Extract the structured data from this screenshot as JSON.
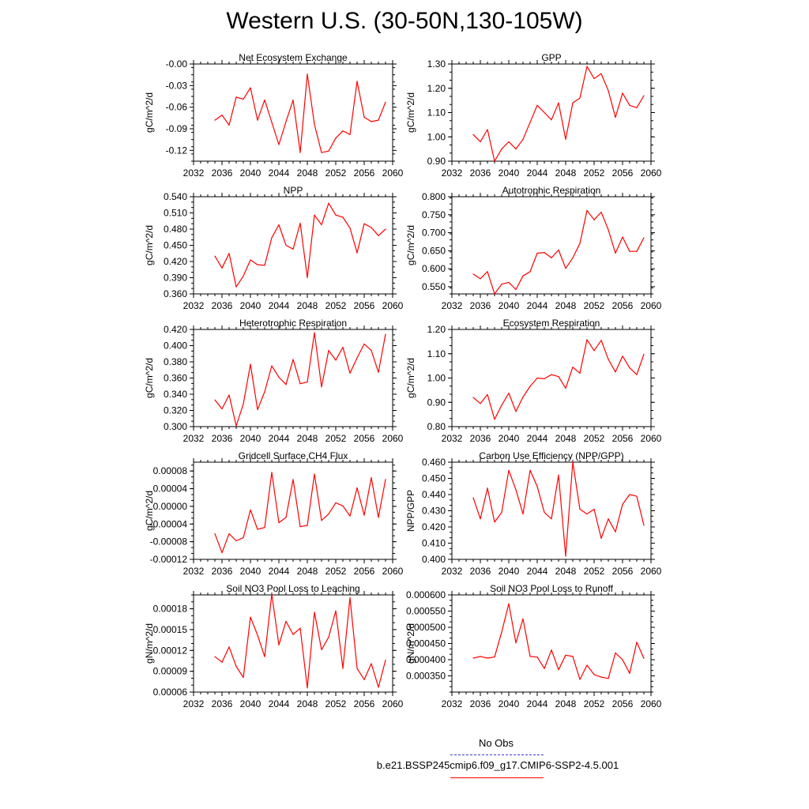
{
  "title": "Western U.S. (30-50N,130-105W)",
  "x_ticks": [
    "2032",
    "2036",
    "2040",
    "2044",
    "2048",
    "2052",
    "2056",
    "2060"
  ],
  "legend": {
    "obs_label": "No Obs",
    "obs_color": "#3b3bd6",
    "model_label": "b.e21.BSSP245cmip6.f09_g17.CMIP6-SSP2-4.5.001",
    "model_color": "#ff0000"
  },
  "chart_data": [
    {
      "type": "line",
      "title": "Net Ecosystem Exchange",
      "ylabel": "gC/m^2/d",
      "xlim": [
        2032,
        2060
      ],
      "ylim": [
        -0.135,
        0.0
      ],
      "yticks": [
        "-0.00",
        "-0.03",
        "-0.06",
        "-0.09",
        "-0.12"
      ],
      "ytick_values": [
        0.0,
        -0.03,
        -0.06,
        -0.09,
        -0.12
      ],
      "series": [
        {
          "x": [
            2035,
            2036,
            2037,
            2038,
            2039,
            2040,
            2041,
            2042,
            2043,
            2044,
            2045,
            2046,
            2047,
            2048,
            2049,
            2050,
            2051,
            2052,
            2053,
            2054,
            2055,
            2056,
            2057,
            2058,
            2059
          ],
          "values": [
            -0.078,
            -0.071,
            -0.085,
            -0.046,
            -0.049,
            -0.033,
            -0.078,
            -0.05,
            -0.081,
            -0.112,
            -0.08,
            -0.05,
            -0.123,
            -0.014,
            -0.084,
            -0.123,
            -0.121,
            -0.103,
            -0.093,
            -0.098,
            -0.024,
            -0.074,
            -0.08,
            -0.078,
            -0.053
          ]
        }
      ]
    },
    {
      "type": "line",
      "title": "GPP",
      "ylabel": "gC/m^2/d",
      "xlim": [
        2032,
        2060
      ],
      "ylim": [
        0.9,
        1.3
      ],
      "yticks": [
        "1.30",
        "1.20",
        "1.10",
        "1.00",
        "0.90"
      ],
      "ytick_values": [
        1.3,
        1.2,
        1.1,
        1.0,
        0.9
      ],
      "series": [
        {
          "x": [
            2035,
            2036,
            2037,
            2038,
            2039,
            2040,
            2041,
            2042,
            2043,
            2044,
            2045,
            2046,
            2047,
            2048,
            2049,
            2050,
            2051,
            2052,
            2053,
            2054,
            2055,
            2056,
            2057,
            2058,
            2059
          ],
          "values": [
            1.01,
            0.98,
            1.03,
            0.9,
            0.95,
            0.98,
            0.95,
            0.99,
            1.06,
            1.13,
            1.1,
            1.07,
            1.14,
            0.99,
            1.14,
            1.16,
            1.29,
            1.24,
            1.26,
            1.19,
            1.08,
            1.18,
            1.13,
            1.12,
            1.17
          ]
        }
      ]
    },
    {
      "type": "line",
      "title": "NPP",
      "ylabel": "gC/m^2/d",
      "xlim": [
        2032,
        2060
      ],
      "ylim": [
        0.36,
        0.54
      ],
      "yticks": [
        "0.540",
        "0.510",
        "0.480",
        "0.450",
        "0.420",
        "0.390",
        "0.360"
      ],
      "ytick_values": [
        0.54,
        0.51,
        0.48,
        0.45,
        0.42,
        0.39,
        0.36
      ],
      "series": [
        {
          "x": [
            2035,
            2036,
            2037,
            2038,
            2039,
            2040,
            2041,
            2042,
            2043,
            2044,
            2045,
            2046,
            2047,
            2048,
            2049,
            2050,
            2051,
            2052,
            2053,
            2054,
            2055,
            2056,
            2057,
            2058,
            2059
          ],
          "values": [
            0.43,
            0.408,
            0.435,
            0.373,
            0.393,
            0.423,
            0.414,
            0.413,
            0.464,
            0.488,
            0.45,
            0.443,
            0.491,
            0.39,
            0.506,
            0.488,
            0.528,
            0.506,
            0.502,
            0.482,
            0.436,
            0.49,
            0.483,
            0.468,
            0.48
          ]
        }
      ]
    },
    {
      "type": "line",
      "title": "Autotrophic Respiration",
      "ylabel": "gC/m^2/d",
      "xlim": [
        2032,
        2060
      ],
      "ylim": [
        0.53,
        0.8
      ],
      "yticks": [
        "0.800",
        "0.750",
        "0.700",
        "0.650",
        "0.600",
        "0.550"
      ],
      "ytick_values": [
        0.8,
        0.75,
        0.7,
        0.65,
        0.6,
        0.55
      ],
      "series": [
        {
          "x": [
            2035,
            2036,
            2037,
            2038,
            2039,
            2040,
            2041,
            2042,
            2043,
            2044,
            2045,
            2046,
            2047,
            2048,
            2049,
            2050,
            2051,
            2052,
            2053,
            2054,
            2055,
            2056,
            2057,
            2058,
            2059
          ],
          "values": [
            0.585,
            0.572,
            0.592,
            0.53,
            0.557,
            0.562,
            0.542,
            0.58,
            0.592,
            0.643,
            0.645,
            0.63,
            0.652,
            0.601,
            0.63,
            0.67,
            0.762,
            0.736,
            0.757,
            0.708,
            0.643,
            0.688,
            0.648,
            0.648,
            0.686
          ]
        }
      ]
    },
    {
      "type": "line",
      "title": "Heterotrophic Respiration",
      "ylabel": "gC/m^2/d",
      "xlim": [
        2032,
        2060
      ],
      "ylim": [
        0.3,
        0.42
      ],
      "yticks": [
        "0.420",
        "0.400",
        "0.380",
        "0.360",
        "0.340",
        "0.320",
        "0.300"
      ],
      "ytick_values": [
        0.42,
        0.4,
        0.38,
        0.36,
        0.34,
        0.32,
        0.3
      ],
      "series": [
        {
          "x": [
            2035,
            2036,
            2037,
            2038,
            2039,
            2040,
            2041,
            2042,
            2043,
            2044,
            2045,
            2046,
            2047,
            2048,
            2049,
            2050,
            2051,
            2052,
            2053,
            2054,
            2055,
            2056,
            2057,
            2058,
            2059
          ],
          "values": [
            0.333,
            0.322,
            0.339,
            0.301,
            0.328,
            0.377,
            0.321,
            0.343,
            0.375,
            0.361,
            0.352,
            0.383,
            0.353,
            0.355,
            0.416,
            0.349,
            0.394,
            0.382,
            0.398,
            0.366,
            0.385,
            0.402,
            0.394,
            0.367,
            0.414
          ]
        }
      ]
    },
    {
      "type": "line",
      "title": "Ecosystem Respiration",
      "ylabel": "gC/m^2/d",
      "xlim": [
        2032,
        2060
      ],
      "ylim": [
        0.8,
        1.2
      ],
      "yticks": [
        "1.20",
        "1.10",
        "1.00",
        "0.90",
        "0.80"
      ],
      "ytick_values": [
        1.2,
        1.1,
        1.0,
        0.9,
        0.8
      ],
      "series": [
        {
          "x": [
            2035,
            2036,
            2037,
            2038,
            2039,
            2040,
            2041,
            2042,
            2043,
            2044,
            2045,
            2046,
            2047,
            2048,
            2049,
            2050,
            2051,
            2052,
            2053,
            2054,
            2055,
            2056,
            2057,
            2058,
            2059
          ],
          "values": [
            0.92,
            0.895,
            0.932,
            0.83,
            0.888,
            0.938,
            0.862,
            0.922,
            0.966,
            1.0,
            0.997,
            1.014,
            1.006,
            0.958,
            1.045,
            1.02,
            1.158,
            1.113,
            1.155,
            1.077,
            1.025,
            1.09,
            1.042,
            1.014,
            1.098
          ]
        }
      ]
    },
    {
      "type": "line",
      "title": "Gridcell Surface CH4 Flux",
      "ylabel": "gC/m^2/d",
      "xlim": [
        2032,
        2060
      ],
      "ylim": [
        -0.00012,
        0.0001
      ],
      "yticks": [
        "0.00008",
        "0.00004",
        "0.00000",
        "-0.00004",
        "-0.00008",
        "-0.00012"
      ],
      "ytick_values": [
        8e-05,
        4e-05,
        0.0,
        -4e-05,
        -8e-05,
        -0.00012
      ],
      "series": [
        {
          "x": [
            2035,
            2036,
            2037,
            2038,
            2039,
            2040,
            2041,
            2042,
            2043,
            2044,
            2045,
            2046,
            2047,
            2048,
            2049,
            2050,
            2051,
            2052,
            2053,
            2054,
            2055,
            2056,
            2057,
            2058,
            2059
          ],
          "values": [
            -6.2e-05,
            -0.000105,
            -6.2e-05,
            -7.8e-05,
            -7.1e-05,
            -8e-06,
            -5.2e-05,
            -4.8e-05,
            7.7e-05,
            -3.7e-05,
            -2.5e-05,
            6.1e-05,
            -4.6e-05,
            -4.3e-05,
            7.3e-05,
            -3.2e-05,
            -1.7e-05,
            8e-06,
            1e-06,
            -2.2e-05,
            4.2e-05,
            -2e-05,
            6.5e-05,
            -2.5e-05,
            6.1e-05
          ]
        }
      ]
    },
    {
      "type": "line",
      "title": "Carbon Use Efficiency (NPP/GPP)",
      "ylabel": "NPP/GPP",
      "xlim": [
        2032,
        2060
      ],
      "ylim": [
        0.4,
        0.46
      ],
      "yticks": [
        "0.460",
        "0.450",
        "0.440",
        "0.430",
        "0.420",
        "0.410",
        "0.400"
      ],
      "ytick_values": [
        0.46,
        0.45,
        0.44,
        0.43,
        0.42,
        0.41,
        0.4
      ],
      "series": [
        {
          "x": [
            2035,
            2036,
            2037,
            2038,
            2039,
            2040,
            2041,
            2042,
            2043,
            2044,
            2045,
            2046,
            2047,
            2048,
            2049,
            2050,
            2051,
            2052,
            2053,
            2054,
            2055,
            2056,
            2057,
            2058,
            2059
          ],
          "values": [
            0.438,
            0.425,
            0.444,
            0.423,
            0.429,
            0.455,
            0.443,
            0.428,
            0.455,
            0.445,
            0.429,
            0.425,
            0.452,
            0.402,
            0.46,
            0.431,
            0.428,
            0.431,
            0.413,
            0.425,
            0.417,
            0.434,
            0.44,
            0.439,
            0.421
          ]
        }
      ]
    },
    {
      "type": "line",
      "title": "Soil NO3 Pool Loss to Leaching",
      "ylabel": "gN/m^2/d",
      "xlim": [
        2032,
        2060
      ],
      "ylim": [
        6e-05,
        0.0002
      ],
      "yticks": [
        "0.00018",
        "0.00015",
        "0.00012",
        "0.00009",
        "0.00006"
      ],
      "ytick_values": [
        0.00018,
        0.00015,
        0.00012,
        9e-05,
        6e-05
      ],
      "series": [
        {
          "x": [
            2035,
            2036,
            2037,
            2038,
            2039,
            2040,
            2041,
            2042,
            2043,
            2044,
            2045,
            2046,
            2047,
            2048,
            2049,
            2050,
            2051,
            2052,
            2053,
            2054,
            2055,
            2056,
            2057,
            2058,
            2059
          ],
          "values": [
            0.000111,
            0.000103,
            0.000125,
            9.7e-05,
            8.1e-05,
            0.000168,
            0.000142,
            0.000111,
            0.000201,
            0.000128,
            0.000162,
            0.000143,
            0.000152,
            6.6e-05,
            0.000175,
            0.000121,
            0.000139,
            0.000177,
            9.4e-05,
            0.000196,
            9.4e-05,
            7.8e-05,
            0.000101,
            6.7e-05,
            0.000106
          ]
        }
      ]
    },
    {
      "type": "line",
      "title": "Soil NO3 Pool Loss to Runoff",
      "ylabel": "gN/m^2/d",
      "xlim": [
        2032,
        2060
      ],
      "ylim": [
        0.0003,
        0.0006
      ],
      "yticks": [
        "0.000600",
        "0.000550",
        "0.000500",
        "0.000450",
        "0.000400",
        "0.000350"
      ],
      "ytick_values": [
        0.0006,
        0.00055,
        0.0005,
        0.00045,
        0.0004,
        0.00035
      ],
      "series": [
        {
          "x": [
            2035,
            2036,
            2037,
            2038,
            2039,
            2040,
            2041,
            2042,
            2043,
            2044,
            2045,
            2046,
            2047,
            2048,
            2049,
            2050,
            2051,
            2052,
            2053,
            2054,
            2055,
            2056,
            2057,
            2058,
            2059
          ],
          "values": [
            0.000405,
            0.00041,
            0.000405,
            0.000408,
            0.000485,
            0.000573,
            0.000452,
            0.000526,
            0.00041,
            0.000408,
            0.000373,
            0.00043,
            0.000369,
            0.000414,
            0.00041,
            0.000339,
            0.000383,
            0.000354,
            0.000346,
            0.000342,
            0.000421,
            0.0004,
            0.000358,
            0.000454,
            0.000404
          ]
        }
      ]
    }
  ]
}
